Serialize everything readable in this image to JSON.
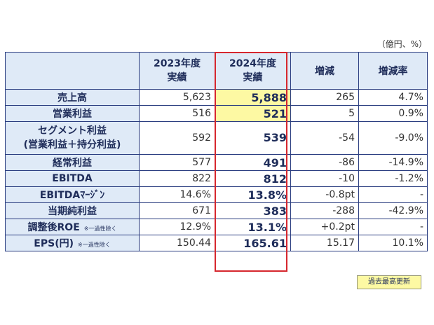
{
  "unit_note": "（億円、%）",
  "headers": {
    "col1_line1": "2023年度",
    "col1_line2": "実績",
    "col2_line1": "2024年度",
    "col2_line2": "実績",
    "col3": "増減",
    "col4": "増減率"
  },
  "rows": [
    {
      "label": "売上高",
      "note": "",
      "prev": "5,623",
      "cur": "5,888",
      "diff": "265",
      "rate": "4.7%",
      "highlight": true
    },
    {
      "label": "営業利益",
      "note": "",
      "prev": "516",
      "cur": "521",
      "diff": "5",
      "rate": "0.9%",
      "highlight": true
    },
    {
      "label": "セグメント利益",
      "label2": "(営業利益＋持分利益)",
      "note": "",
      "prev": "592",
      "cur": "539",
      "diff": "-54",
      "rate": "-9.0%",
      "highlight": false
    },
    {
      "label": "経常利益",
      "note": "",
      "prev": "577",
      "cur": "491",
      "diff": "-86",
      "rate": "-14.9%",
      "highlight": false
    },
    {
      "label": "EBITDA",
      "note": "",
      "prev": "822",
      "cur": "812",
      "diff": "-10",
      "rate": "-1.2%",
      "highlight": false
    },
    {
      "label": "EBITDAﾏｰｼﾞﾝ",
      "note": "",
      "prev": "14.6%",
      "cur": "13.8%",
      "diff": "-0.8pt",
      "rate": "-",
      "highlight": false
    },
    {
      "label": "当期純利益",
      "note": "",
      "prev": "671",
      "cur": "383",
      "diff": "-288",
      "rate": "-42.9%",
      "highlight": false
    },
    {
      "label": "調整後ROE",
      "note": "※一過性除く",
      "prev": "12.9%",
      "cur": "13.1%",
      "diff": "+0.2pt",
      "rate": "-",
      "highlight": false
    },
    {
      "label": "EPS(円)",
      "note": "※一過性除く",
      "prev": "150.44",
      "cur": "165.61",
      "diff": "15.17",
      "rate": "10.1%",
      "highlight": false
    }
  ],
  "legend": "過去最高更新",
  "colors": {
    "header_bg": "#dfeaf7",
    "highlight": "#fdf9a3",
    "frame": "#d6272e",
    "border": "#2a3d80"
  }
}
